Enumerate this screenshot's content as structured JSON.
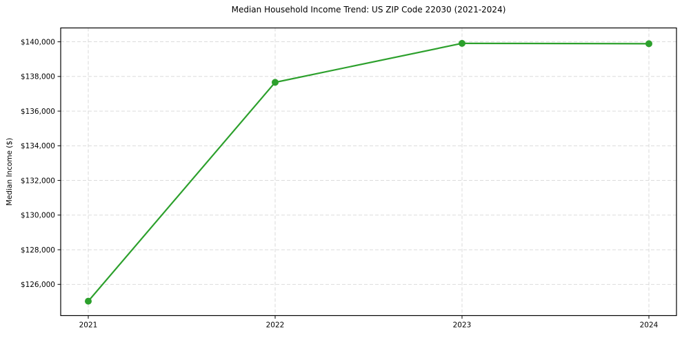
{
  "chart_data": {
    "type": "line",
    "title": "Median Household Income Trend: US ZIP Code 22030 (2021-2024)",
    "ylabel": "Median Income ($)",
    "xlabel": "",
    "categories": [
      "2021",
      "2022",
      "2023",
      "2024"
    ],
    "series": [
      {
        "name": "Median Household Income",
        "values": [
          125030,
          137660,
          139910,
          139890
        ]
      }
    ],
    "ylim": [
      124200,
      140800
    ],
    "yticks": [
      {
        "value": 126000,
        "label": "$126,000"
      },
      {
        "value": 128000,
        "label": "$128,000"
      },
      {
        "value": 130000,
        "label": "$130,000"
      },
      {
        "value": 132000,
        "label": "$132,000"
      },
      {
        "value": 134000,
        "label": "$134,000"
      },
      {
        "value": 136000,
        "label": "$136,000"
      },
      {
        "value": 138000,
        "label": "$138,000"
      },
      {
        "value": 140000,
        "label": "$140,000"
      }
    ],
    "grid": true,
    "grid_style": "dashed",
    "legend_position": "none",
    "line_color": "#2ca02c",
    "marker": "circle",
    "grid_color": "#d6d6d6",
    "axis_color": "#000000",
    "background_color": "#ffffff",
    "text_color": "#000000"
  }
}
